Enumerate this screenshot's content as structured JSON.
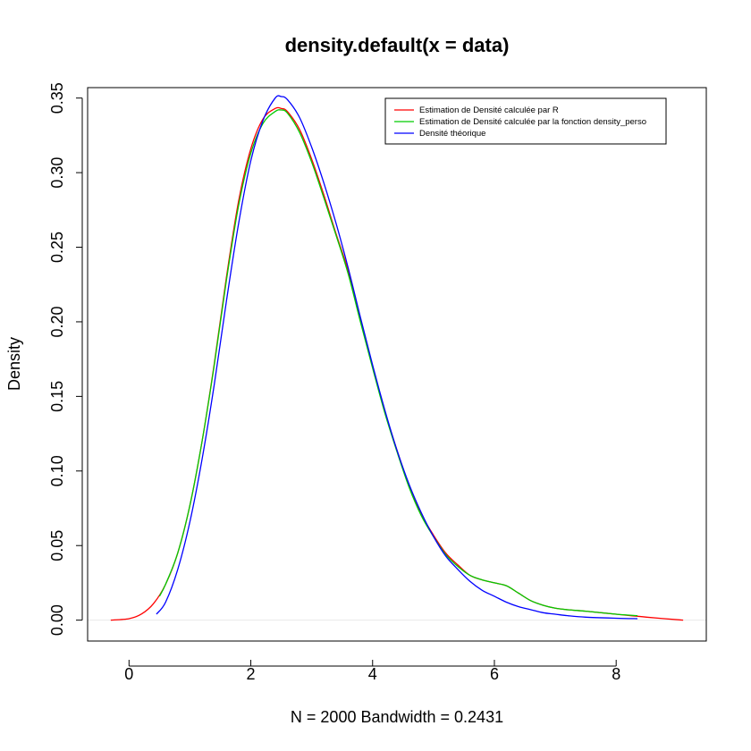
{
  "chart_data": {
    "type": "line",
    "title": "density.default(x = data)",
    "xlabel": "N = 2000   Bandwidth = 0.2431",
    "ylabel": "Density",
    "xlim": [
      -0.68,
      9.48
    ],
    "ylim": [
      -0.014,
      0.357
    ],
    "xticks": [
      0,
      2,
      4,
      6,
      8
    ],
    "yticks": [
      0.0,
      0.05,
      0.1,
      0.15,
      0.2,
      0.25,
      0.3,
      0.35
    ],
    "xtick_labels": [
      "0",
      "2",
      "4",
      "6",
      "8"
    ],
    "ytick_labels": [
      "0.00",
      "0.05",
      "0.10",
      "0.15",
      "0.20",
      "0.25",
      "0.30",
      "0.35"
    ],
    "grid": false,
    "legend_position": "top-right",
    "baseline_y": 0,
    "series": [
      {
        "name": "Estimation de Densité calculée par R",
        "color": "#ff0000",
        "x": [
          -0.3,
          0.0,
          0.2,
          0.4,
          0.6,
          0.8,
          1.0,
          1.2,
          1.4,
          1.6,
          1.8,
          2.0,
          2.2,
          2.4,
          2.5,
          2.6,
          2.8,
          3.0,
          3.2,
          3.4,
          3.6,
          3.8,
          4.0,
          4.2,
          4.4,
          4.6,
          4.8,
          5.0,
          5.2,
          5.4,
          5.6,
          5.8,
          6.0,
          6.2,
          6.4,
          6.6,
          6.8,
          7.0,
          7.2,
          7.5,
          8.0,
          8.5,
          9.1
        ],
        "y": [
          0.0,
          0.001,
          0.004,
          0.011,
          0.024,
          0.045,
          0.077,
          0.12,
          0.172,
          0.23,
          0.281,
          0.316,
          0.336,
          0.343,
          0.343,
          0.341,
          0.329,
          0.309,
          0.285,
          0.259,
          0.234,
          0.202,
          0.17,
          0.14,
          0.114,
          0.09,
          0.071,
          0.057,
          0.045,
          0.037,
          0.03,
          0.027,
          0.025,
          0.023,
          0.018,
          0.013,
          0.01,
          0.008,
          0.007,
          0.006,
          0.004,
          0.002,
          0.0
        ]
      },
      {
        "name": "Estimation de Densité calculée par la fonction density_perso",
        "color": "#00cc00",
        "x": [
          0.5,
          0.6,
          0.8,
          1.0,
          1.2,
          1.4,
          1.6,
          1.8,
          2.0,
          2.2,
          2.4,
          2.5,
          2.6,
          2.8,
          3.0,
          3.2,
          3.4,
          3.6,
          3.8,
          4.0,
          4.2,
          4.4,
          4.6,
          4.8,
          5.0,
          5.2,
          5.4,
          5.6,
          5.8,
          6.0,
          6.2,
          6.4,
          6.6,
          6.8,
          7.0,
          7.2,
          7.5,
          8.0,
          8.35
        ],
        "y": [
          0.016,
          0.024,
          0.045,
          0.077,
          0.12,
          0.171,
          0.228,
          0.278,
          0.313,
          0.333,
          0.341,
          0.342,
          0.34,
          0.327,
          0.307,
          0.283,
          0.258,
          0.232,
          0.2,
          0.169,
          0.139,
          0.113,
          0.089,
          0.07,
          0.056,
          0.044,
          0.036,
          0.03,
          0.027,
          0.025,
          0.023,
          0.018,
          0.013,
          0.01,
          0.008,
          0.007,
          0.006,
          0.004,
          0.003
        ]
      },
      {
        "name": "Densité théorique",
        "color": "#0000ff",
        "x": [
          0.45,
          0.6,
          0.8,
          1.0,
          1.2,
          1.4,
          1.6,
          1.8,
          2.0,
          2.2,
          2.4,
          2.5,
          2.6,
          2.8,
          3.0,
          3.2,
          3.4,
          3.6,
          3.8,
          4.0,
          4.2,
          4.4,
          4.6,
          4.8,
          5.0,
          5.2,
          5.4,
          5.6,
          5.8,
          6.0,
          6.2,
          6.4,
          6.6,
          6.8,
          7.0,
          7.2,
          7.5,
          8.0,
          8.35
        ],
        "y": [
          0.004,
          0.012,
          0.034,
          0.066,
          0.108,
          0.158,
          0.214,
          0.266,
          0.308,
          0.335,
          0.35,
          0.351,
          0.349,
          0.337,
          0.317,
          0.293,
          0.266,
          0.236,
          0.203,
          0.171,
          0.141,
          0.114,
          0.091,
          0.072,
          0.056,
          0.043,
          0.034,
          0.026,
          0.02,
          0.016,
          0.012,
          0.009,
          0.007,
          0.005,
          0.004,
          0.003,
          0.002,
          0.0013,
          0.001
        ]
      }
    ]
  }
}
